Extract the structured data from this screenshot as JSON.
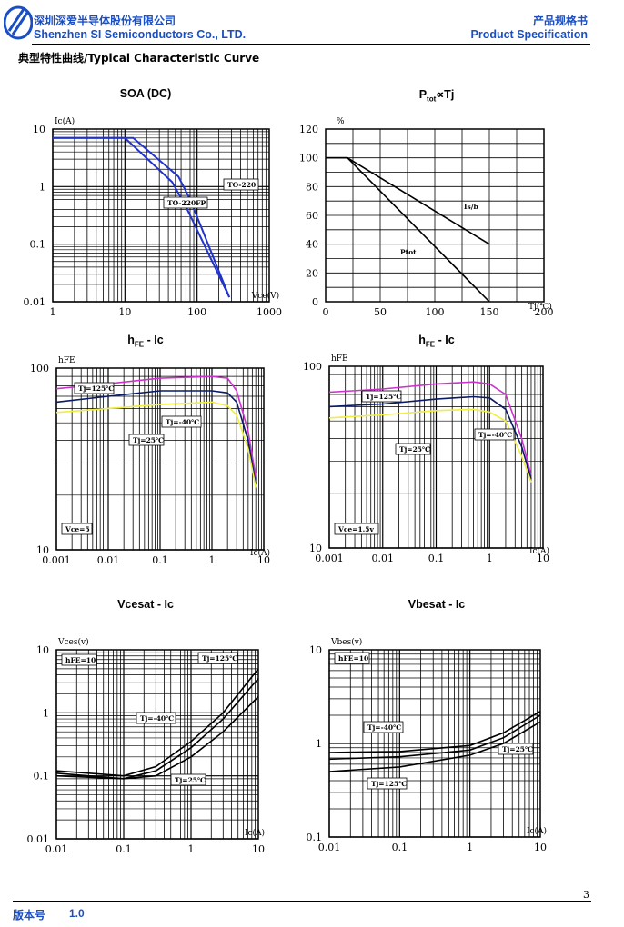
{
  "header": {
    "company_cn": "深圳深爱半导体股份有限公司",
    "company_en": "Shenzhen SI Semiconductors Co., LTD.",
    "doc_cn": "产品规格书",
    "doc_en": "Product Specification",
    "logo_icon": "si-logo-icon"
  },
  "section_title": "典型特性曲线/Typical Characteristic Curve",
  "colors": {
    "brand_blue": "#1a4fc4",
    "curve_blue": "#2233cc",
    "curve_navy": "#0a1a66",
    "curve_magenta": "#cc33cc",
    "curve_yellow": "#eeee44"
  },
  "chart_data": [
    {
      "id": "soa",
      "title": "SOA (DC)",
      "type": "line",
      "xscale": "log",
      "yscale": "log",
      "xlim": [
        1,
        1000
      ],
      "ylim": [
        0.01,
        10
      ],
      "xlabel": "Vce(V)",
      "ylabel": "Ic(A)",
      "xticks": [
        "1",
        "10",
        "100",
        "1000"
      ],
      "yticks": [
        "10",
        "1",
        "0.1",
        "0.01"
      ],
      "series": [
        {
          "name": "TO-220",
          "x": [
            1,
            13,
            55,
            80,
            280
          ],
          "y": [
            7,
            7,
            1.5,
            0.6,
            0.012
          ]
        },
        {
          "name": "TO-220FP",
          "x": [
            1,
            10,
            45,
            70,
            280
          ],
          "y": [
            7,
            7,
            1.2,
            0.45,
            0.012
          ]
        }
      ]
    },
    {
      "id": "ptot",
      "title_main": "P",
      "title_sub": "tot",
      "title_rest": "∝Tj",
      "type": "line",
      "xlim": [
        0,
        200
      ],
      "ylim": [
        0,
        120
      ],
      "xlabel": "Tj(℃)",
      "ylabel": "%",
      "xticks": [
        "0",
        "50",
        "100",
        "150",
        "200"
      ],
      "yticks": [
        "0",
        "20",
        "40",
        "60",
        "80",
        "100",
        "120"
      ],
      "series": [
        {
          "name": "Is/b",
          "x": [
            0,
            20,
            150
          ],
          "y": [
            100,
            100,
            40
          ]
        },
        {
          "name": "Ptot",
          "x": [
            0,
            20,
            150
          ],
          "y": [
            100,
            100,
            0
          ]
        }
      ]
    },
    {
      "id": "hfe1",
      "title_main": "h",
      "title_sub": "FE",
      "title_rest": " - Ic",
      "type": "line",
      "xscale": "log",
      "yscale": "log",
      "xlim": [
        0.001,
        10
      ],
      "ylim": [
        10,
        100
      ],
      "xlabel": "Ic(A)",
      "ylabel": "hFE",
      "xticks": [
        "0.001",
        "0.01",
        "0.1",
        "1",
        "10"
      ],
      "yticks": [
        "100",
        "10"
      ],
      "note": "Vce=5",
      "series": [
        {
          "name": "Tj=125℃",
          "x": [
            0.001,
            0.01,
            0.1,
            1,
            2,
            3,
            5,
            7
          ],
          "y": [
            77,
            82,
            88,
            90,
            88,
            75,
            45,
            25
          ]
        },
        {
          "name": "Tj=25℃",
          "x": [
            0.001,
            0.01,
            0.1,
            1,
            2,
            3,
            5,
            7
          ],
          "y": [
            65,
            70,
            75,
            75,
            73,
            65,
            40,
            23
          ]
        },
        {
          "name": "Tj=-40℃",
          "x": [
            0.001,
            0.01,
            0.1,
            1,
            2,
            3,
            5,
            7
          ],
          "y": [
            57,
            60,
            63,
            65,
            62,
            55,
            36,
            22
          ]
        }
      ]
    },
    {
      "id": "hfe2",
      "title_main": "h",
      "title_sub": "FE",
      "title_rest": " - Ic",
      "type": "line",
      "xscale": "log",
      "yscale": "log",
      "xlim": [
        0.001,
        10
      ],
      "ylim": [
        10,
        100
      ],
      "xlabel": "Ic(A)",
      "ylabel": "hFE",
      "xticks": [
        "0.001",
        "0.01",
        "0.1",
        "1",
        "10"
      ],
      "yticks": [
        "100",
        "10"
      ],
      "note": "Vce=1.5v",
      "series": [
        {
          "name": "Tj=125℃",
          "x": [
            0.001,
            0.01,
            0.1,
            0.5,
            1,
            2,
            4,
            6
          ],
          "y": [
            72,
            75,
            80,
            82,
            80,
            70,
            40,
            25
          ]
        },
        {
          "name": "Tj=25℃",
          "x": [
            0.001,
            0.01,
            0.1,
            0.5,
            1,
            2,
            4,
            6
          ],
          "y": [
            60,
            62,
            66,
            68,
            67,
            58,
            36,
            24
          ]
        },
        {
          "name": "Tj=-40℃",
          "x": [
            0.001,
            0.01,
            0.1,
            0.5,
            1,
            2,
            4,
            6
          ],
          "y": [
            52,
            54,
            57,
            58,
            56,
            50,
            32,
            23
          ]
        }
      ]
    },
    {
      "id": "vcesat",
      "title": "Vcesat - Ic",
      "type": "line",
      "xscale": "log",
      "yscale": "log",
      "xlim": [
        0.01,
        10
      ],
      "ylim": [
        0.01,
        10
      ],
      "xlabel": "Ic(A)",
      "ylabel": "Vces(v)",
      "xticks": [
        "0.01",
        "0.1",
        "1",
        "10"
      ],
      "yticks": [
        "10",
        "1",
        "0.1",
        "0.01"
      ],
      "note": "hFE=10",
      "series": [
        {
          "name": "Tj=125℃",
          "x": [
            0.01,
            0.1,
            0.3,
            1,
            3,
            10
          ],
          "y": [
            0.12,
            0.1,
            0.14,
            0.35,
            1,
            5
          ]
        },
        {
          "name": "Tj=-40℃",
          "x": [
            0.01,
            0.1,
            0.3,
            1,
            3,
            10
          ],
          "y": [
            0.1,
            0.09,
            0.12,
            0.28,
            0.8,
            3.5
          ]
        },
        {
          "name": "Tj=25℃",
          "x": [
            0.01,
            0.1,
            0.3,
            1,
            3,
            10
          ],
          "y": [
            0.11,
            0.09,
            0.1,
            0.2,
            0.5,
            1.8
          ]
        }
      ]
    },
    {
      "id": "vbesat",
      "title": "Vbesat - Ic",
      "type": "line",
      "xscale": "log",
      "yscale": "log",
      "xlim": [
        0.01,
        10
      ],
      "ylim": [
        0.1,
        10
      ],
      "xlabel": "Ic(A)",
      "ylabel": "Vbes(v)",
      "xticks": [
        "0.01",
        "0.1",
        "1",
        "10"
      ],
      "yticks": [
        "10",
        "1",
        "0.1"
      ],
      "note": "hFE=10",
      "series": [
        {
          "name": "Tj=-40℃",
          "x": [
            0.01,
            0.1,
            1,
            3,
            10
          ],
          "y": [
            0.8,
            0.82,
            0.95,
            1.3,
            2.2
          ]
        },
        {
          "name": "Tj=25℃",
          "x": [
            0.01,
            0.1,
            1,
            3,
            10
          ],
          "y": [
            0.68,
            0.72,
            0.85,
            1.15,
            2.0
          ]
        },
        {
          "name": "Tj=125℃",
          "x": [
            0.01,
            0.1,
            1,
            3,
            10
          ],
          "y": [
            0.5,
            0.56,
            0.75,
            1.0,
            1.7
          ]
        }
      ]
    }
  ],
  "footer": {
    "page_number": "3",
    "version_label": "版本号",
    "version_value": "1.0"
  }
}
